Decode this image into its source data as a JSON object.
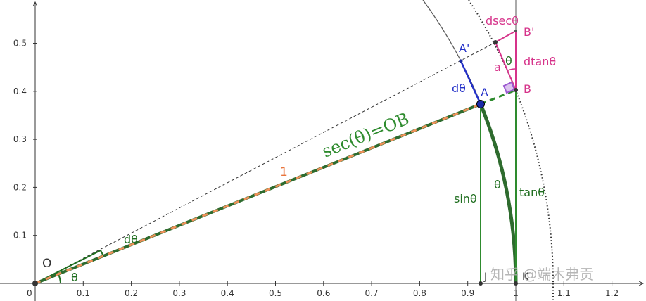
{
  "axes": {
    "origin": "0",
    "xticks": [
      0.1,
      0.2,
      0.3,
      0.4,
      0.5,
      0.6,
      0.7,
      0.8,
      0.9,
      1,
      1.1,
      1.2
    ],
    "yticks": [
      0.1,
      0.2,
      0.3,
      0.4,
      0.5
    ]
  },
  "labels": {
    "O": "O",
    "theta_origin": "θ",
    "dtheta_green": "dθ",
    "one": "1",
    "sec": "sec(θ)=OB",
    "A": "A",
    "A_prime": "A'",
    "dtheta_blue": "dθ",
    "B": "B",
    "B_prime": "B'",
    "dsec": "dsecθ",
    "theta_pink": "θ",
    "a": "a",
    "dtan": "dtanθ",
    "sin": "sinθ",
    "theta_arc": "θ",
    "tan": "tanθ",
    "J": "J",
    "K": "K"
  },
  "watermark": "知乎 @端木弗贡"
}
